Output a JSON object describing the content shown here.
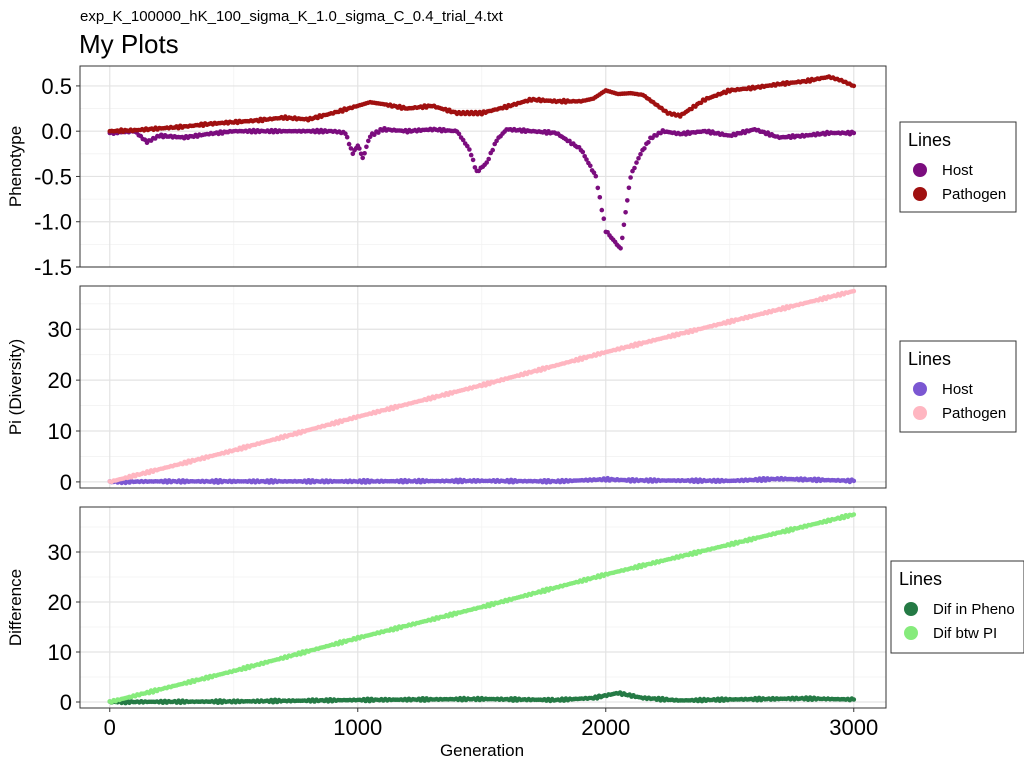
{
  "chart_data": {
    "subtitle": "exp_K_100000_hK_100_sigma_K_1.0_sigma_C_0.4_trial_4.txt",
    "title": "My Plots",
    "xlabel": "Generation",
    "x_ticks": [
      0,
      1000,
      2000,
      3000
    ],
    "xlim": [
      -120,
      3130
    ],
    "type": "scatter",
    "panels": [
      {
        "ylabel": "Phenotype",
        "ylim": [
          -1.5,
          0.72
        ],
        "y_ticks": [
          0.5,
          0.0,
          -0.5,
          -1.0,
          -1.5
        ],
        "y_tick_labels": [
          "0.5",
          "0.0",
          "-0.5",
          "-1.0",
          "-1.5"
        ],
        "legend": {
          "title": "Lines",
          "items": [
            "Host",
            "Pathogen"
          ]
        },
        "series": [
          {
            "name": "Host",
            "color": "#7B0D7E",
            "points": [
              [
                0,
                -0.02
              ],
              [
                100,
                0.0
              ],
              [
                150,
                -0.12
              ],
              [
                200,
                -0.05
              ],
              [
                300,
                -0.07
              ],
              [
                400,
                -0.03
              ],
              [
                500,
                0.0
              ],
              [
                700,
                0.0
              ],
              [
                900,
                0.0
              ],
              [
                950,
                -0.02
              ],
              [
                980,
                -0.25
              ],
              [
                1000,
                -0.15
              ],
              [
                1020,
                -0.3
              ],
              [
                1050,
                -0.05
              ],
              [
                1100,
                0.02
              ],
              [
                1200,
                0.0
              ],
              [
                1300,
                0.02
              ],
              [
                1400,
                0.0
              ],
              [
                1450,
                -0.2
              ],
              [
                1480,
                -0.45
              ],
              [
                1520,
                -0.35
              ],
              [
                1560,
                -0.1
              ],
              [
                1600,
                0.02
              ],
              [
                1700,
                0.0
              ],
              [
                1800,
                -0.02
              ],
              [
                1900,
                -0.2
              ],
              [
                1960,
                -0.5
              ],
              [
                2000,
                -1.1
              ],
              [
                2030,
                -1.2
              ],
              [
                2060,
                -1.3
              ],
              [
                2080,
                -0.9
              ],
              [
                2100,
                -0.5
              ],
              [
                2140,
                -0.25
              ],
              [
                2180,
                -0.08
              ],
              [
                2230,
                0.0
              ],
              [
                2300,
                -0.03
              ],
              [
                2400,
                0.0
              ],
              [
                2500,
                -0.05
              ],
              [
                2600,
                0.02
              ],
              [
                2700,
                -0.07
              ],
              [
                2800,
                -0.05
              ],
              [
                2900,
                -0.02
              ],
              [
                3000,
                -0.02
              ]
            ]
          },
          {
            "name": "Pathogen",
            "color": "#A01010",
            "points": [
              [
                0,
                0.0
              ],
              [
                100,
                0.01
              ],
              [
                200,
                0.03
              ],
              [
                300,
                0.05
              ],
              [
                400,
                0.08
              ],
              [
                500,
                0.1
              ],
              [
                600,
                0.12
              ],
              [
                700,
                0.15
              ],
              [
                800,
                0.13
              ],
              [
                900,
                0.2
              ],
              [
                1000,
                0.28
              ],
              [
                1050,
                0.32
              ],
              [
                1100,
                0.3
              ],
              [
                1200,
                0.25
              ],
              [
                1300,
                0.28
              ],
              [
                1400,
                0.2
              ],
              [
                1450,
                0.2
              ],
              [
                1500,
                0.2
              ],
              [
                1600,
                0.27
              ],
              [
                1700,
                0.35
              ],
              [
                1800,
                0.33
              ],
              [
                1900,
                0.33
              ],
              [
                1950,
                0.36
              ],
              [
                2000,
                0.45
              ],
              [
                2050,
                0.41
              ],
              [
                2100,
                0.42
              ],
              [
                2150,
                0.4
              ],
              [
                2200,
                0.3
              ],
              [
                2250,
                0.2
              ],
              [
                2300,
                0.17
              ],
              [
                2400,
                0.35
              ],
              [
                2500,
                0.45
              ],
              [
                2600,
                0.48
              ],
              [
                2700,
                0.52
              ],
              [
                2800,
                0.55
              ],
              [
                2900,
                0.6
              ],
              [
                2950,
                0.56
              ],
              [
                3000,
                0.5
              ]
            ]
          }
        ]
      },
      {
        "ylabel": "Pi (Diversity)",
        "ylim": [
          -1.2,
          38.5
        ],
        "y_ticks": [
          0,
          10,
          20,
          30
        ],
        "y_tick_labels": [
          "0",
          "10",
          "20",
          "30"
        ],
        "legend": {
          "title": "Lines",
          "items": [
            "Host",
            "Pathogen"
          ]
        },
        "series": [
          {
            "name": "Host",
            "color": "#7B57D2",
            "points": [
              [
                0,
                0.0
              ],
              [
                200,
                0.1
              ],
              [
                500,
                0.1
              ],
              [
                1000,
                0.1
              ],
              [
                1500,
                0.2
              ],
              [
                1800,
                0.1
              ],
              [
                2000,
                0.5
              ],
              [
                2100,
                0.3
              ],
              [
                2500,
                0.2
              ],
              [
                2700,
                0.6
              ],
              [
                2850,
                0.4
              ],
              [
                3000,
                0.2
              ]
            ]
          },
          {
            "name": "Pathogen",
            "color": "#FFB6C1",
            "points": [
              [
                0,
                0.0
              ],
              [
                500,
                6.2
              ],
              [
                1000,
                12.8
              ],
              [
                1500,
                19.0
              ],
              [
                2000,
                25.5
              ],
              [
                2500,
                31.5
              ],
              [
                3000,
                37.5
              ]
            ]
          }
        ]
      },
      {
        "ylabel": "Difference",
        "ylim": [
          -1.2,
          39.0
        ],
        "y_ticks": [
          0,
          10,
          20,
          30
        ],
        "y_tick_labels": [
          "0",
          "10",
          "20",
          "30"
        ],
        "legend": {
          "title": "Lines",
          "items": [
            "Dif in Pheno",
            "Dif btw PI"
          ]
        },
        "series": [
          {
            "name": "Dif in Pheno",
            "color": "#257A45",
            "points": [
              [
                0,
                0.0
              ],
              [
                500,
                0.1
              ],
              [
                1000,
                0.4
              ],
              [
                1500,
                0.6
              ],
              [
                1800,
                0.4
              ],
              [
                1950,
                0.8
              ],
              [
                2050,
                1.8
              ],
              [
                2150,
                0.8
              ],
              [
                2300,
                0.3
              ],
              [
                2500,
                0.5
              ],
              [
                2800,
                0.7
              ],
              [
                3000,
                0.5
              ]
            ]
          },
          {
            "name": "Dif btw PI",
            "color": "#86EB7C",
            "points": [
              [
                0,
                0.0
              ],
              [
                500,
                6.2
              ],
              [
                1000,
                12.8
              ],
              [
                1500,
                19.0
              ],
              [
                2000,
                25.5
              ],
              [
                2500,
                31.5
              ],
              [
                3000,
                37.5
              ]
            ]
          }
        ]
      }
    ]
  }
}
